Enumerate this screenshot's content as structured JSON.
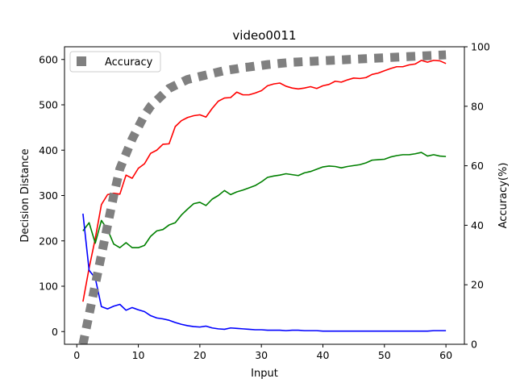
{
  "chart_data": {
    "type": "line",
    "title": "video0011",
    "xlabel": "Input",
    "ylabel": "Decision Distance",
    "y2label": "Accuracy(%)",
    "xlim": [
      -2.0,
      63.0
    ],
    "ylim": [
      -28,
      628
    ],
    "y2lim": [
      0,
      100
    ],
    "xticks": [
      0,
      10,
      20,
      30,
      40,
      50,
      60
    ],
    "yticks": [
      0,
      100,
      200,
      300,
      400,
      500,
      600
    ],
    "y2ticks": [
      0,
      20,
      40,
      60,
      80,
      100
    ],
    "x": [
      1,
      2,
      3,
      4,
      5,
      6,
      7,
      8,
      9,
      10,
      11,
      12,
      13,
      14,
      15,
      16,
      17,
      18,
      19,
      20,
      21,
      22,
      23,
      24,
      25,
      26,
      27,
      28,
      29,
      30,
      31,
      32,
      33,
      34,
      35,
      36,
      37,
      38,
      39,
      40,
      41,
      42,
      43,
      44,
      45,
      46,
      47,
      48,
      49,
      50,
      51,
      52,
      53,
      54,
      55,
      56,
      57,
      58,
      59,
      60
    ],
    "series": [
      {
        "color": "#ff0000",
        "axis": "left",
        "values": [
          66,
          140,
          205,
          280,
          302,
          305,
          303,
          345,
          338,
          360,
          370,
          393,
          400,
          413,
          414,
          452,
          465,
          472,
          476,
          478,
          473,
          492,
          508,
          515,
          516,
          528,
          522,
          522,
          526,
          531,
          542,
          546,
          548,
          541,
          537,
          535,
          537,
          540,
          536,
          542,
          545,
          552,
          550,
          555,
          559,
          558,
          560,
          567,
          570,
          575,
          580,
          584,
          584,
          588,
          590,
          598,
          594,
          598,
          597,
          591
        ]
      },
      {
        "color": "#008000",
        "axis": "left",
        "values": [
          222,
          240,
          195,
          245,
          225,
          193,
          185,
          196,
          185,
          185,
          190,
          210,
          222,
          225,
          235,
          240,
          257,
          270,
          282,
          285,
          278,
          292,
          300,
          311,
          302,
          308,
          312,
          317,
          322,
          330,
          340,
          343,
          345,
          348,
          346,
          344,
          350,
          353,
          358,
          363,
          365,
          364,
          361,
          364,
          366,
          368,
          372,
          378,
          379,
          380,
          385,
          388,
          390,
          390,
          392,
          395,
          387,
          390,
          387,
          386
        ]
      },
      {
        "color": "#0000ff",
        "axis": "left",
        "values": [
          260,
          135,
          118,
          55,
          50,
          56,
          60,
          47,
          53,
          48,
          44,
          35,
          30,
          28,
          25,
          20,
          16,
          13,
          11,
          10,
          12,
          8,
          6,
          5,
          8,
          7,
          6,
          5,
          4,
          4,
          3,
          3,
          3,
          2,
          3,
          3,
          2,
          2,
          2,
          1,
          1,
          1,
          1,
          1,
          1,
          1,
          1,
          1,
          1,
          1,
          1,
          1,
          1,
          1,
          1,
          1,
          1,
          2,
          2,
          2
        ]
      },
      {
        "name": "Accuracy",
        "color": "#808080",
        "axis": "right",
        "style": "dotted",
        "x": [
          1,
          2,
          3,
          4,
          5,
          6,
          7,
          8,
          9,
          10,
          11,
          12,
          13,
          14,
          15,
          16,
          17,
          18,
          19,
          20,
          21,
          22,
          23,
          24,
          25,
          26,
          27,
          28,
          29,
          30,
          31,
          32,
          33,
          34,
          35,
          36,
          37,
          38,
          39,
          40,
          41,
          42,
          43,
          44,
          45,
          46,
          47,
          48,
          49,
          50,
          51,
          52,
          53,
          54,
          55,
          56,
          57,
          58,
          59,
          60
        ],
        "values": [
          0,
          10,
          20,
          30,
          40,
          50,
          59,
          64,
          69,
          73,
          77,
          80,
          82,
          84,
          86,
          87,
          88,
          89,
          89.5,
          90,
          90.5,
          91,
          91.5,
          92,
          92.3,
          92.6,
          93,
          93.2,
          93.5,
          93.7,
          94,
          94.2,
          94.4,
          94.6,
          94.8,
          94.9,
          95,
          95.1,
          95.2,
          95.3,
          95.4,
          95.5,
          95.6,
          95.7,
          95.8,
          95.9,
          96,
          96.1,
          96.2,
          96.3,
          96.4,
          96.5,
          96.6,
          96.7,
          96.8,
          96.9,
          97,
          97.1,
          97.2,
          97.3
        ]
      }
    ],
    "legend": {
      "placement": "top-left",
      "entries": [
        "Accuracy"
      ]
    },
    "grid": false
  }
}
